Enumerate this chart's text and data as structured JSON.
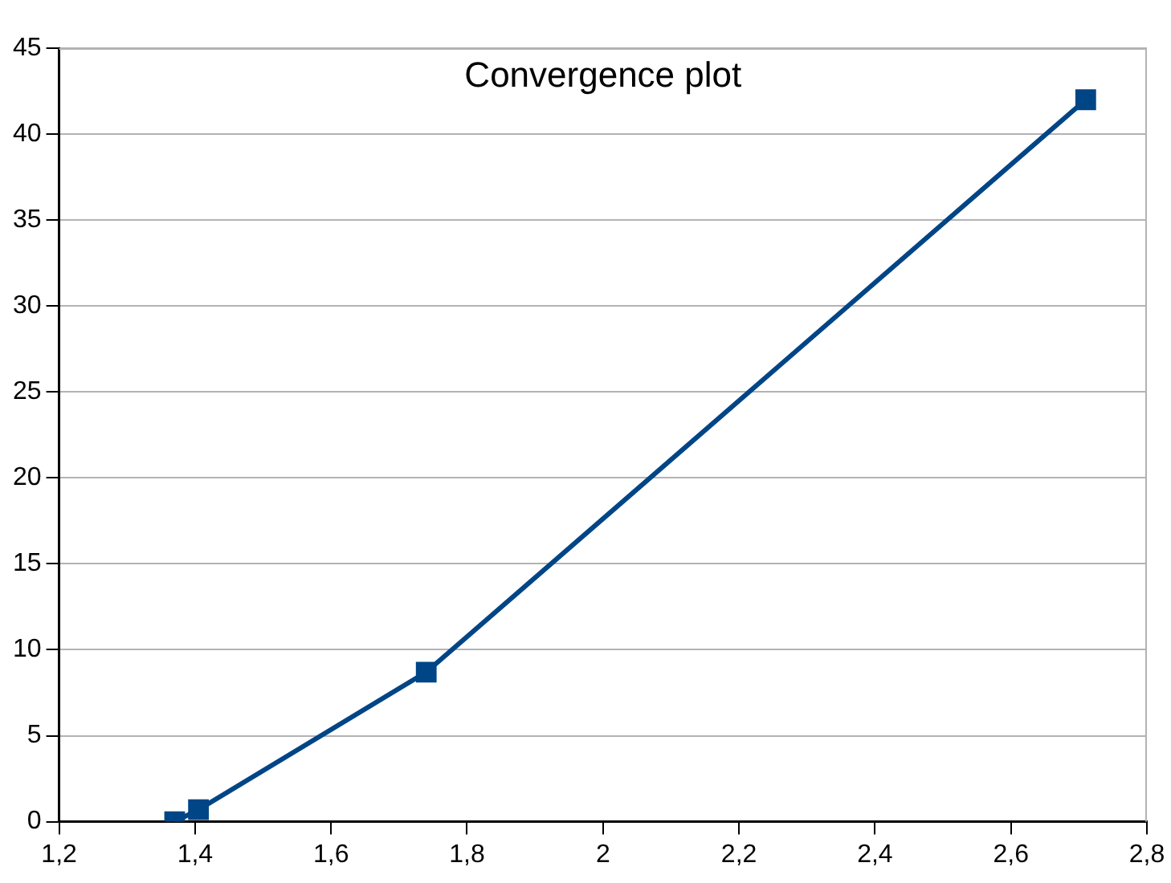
{
  "chart_data": {
    "type": "line",
    "title": "Convergence plot",
    "x": [
      1.37,
      1.405,
      1.74,
      2.71
    ],
    "series": [
      {
        "color": "#004586",
        "values": [
          0,
          0.7,
          8.7,
          42
        ]
      }
    ],
    "xlim": [
      1.2,
      2.8
    ],
    "xticks": [
      {
        "value": 1.2,
        "label": "1,2"
      },
      {
        "value": 1.4,
        "label": "1,4"
      },
      {
        "value": 1.6,
        "label": "1,6"
      },
      {
        "value": 1.8,
        "label": "1,8"
      },
      2,
      {
        "value": 2.2,
        "label": "2,2"
      },
      {
        "value": 2.4,
        "label": "2,4"
      },
      {
        "value": 2.6,
        "label": "2,6"
      },
      {
        "value": 2.8,
        "label": "2,8"
      }
    ],
    "ylim": [
      0,
      45
    ],
    "yticks": [
      0,
      5,
      10,
      15,
      20,
      25,
      30,
      35,
      40,
      45
    ],
    "grid": "y",
    "legend": false,
    "marker": "square",
    "line_style": "solid"
  }
}
